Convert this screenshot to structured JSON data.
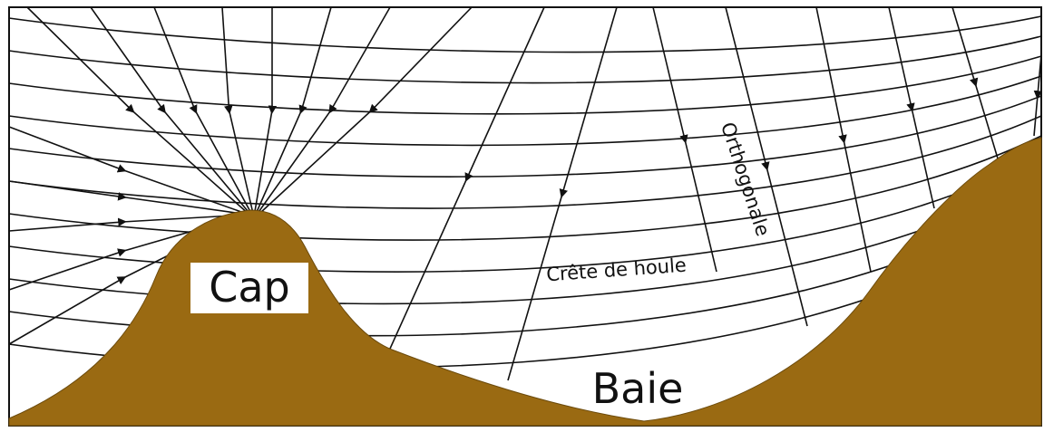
{
  "labels": {
    "cap": "Cap",
    "baie": "Baie",
    "crest": "Crête de houle",
    "orthogonal": "Orthogonale"
  }
}
